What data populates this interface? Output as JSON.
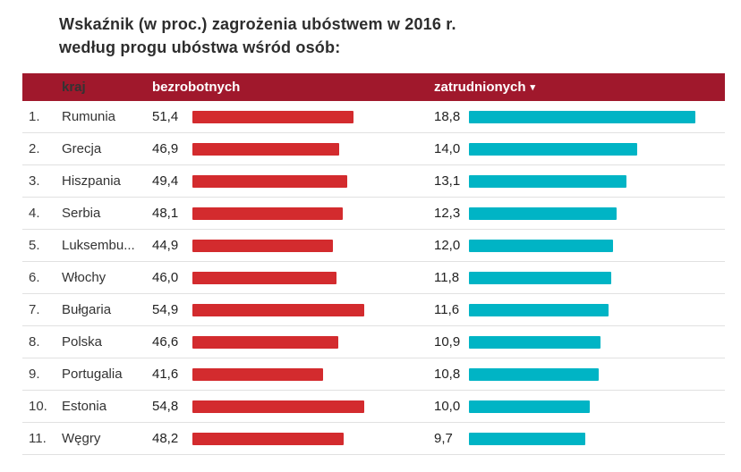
{
  "title": {
    "line1": "Wskaźnik (w proc.) zagrożenia ubóstwem w 2016 r.",
    "line2": "według progu ubóstwa wśród osób:"
  },
  "table": {
    "columns": {
      "country": "kraj",
      "unemployed": "bezrobotnych",
      "employed": "zatrudnionych"
    },
    "sort_icon": "▾",
    "rows": [
      {
        "rank": "1.",
        "country": "Rumunia",
        "unemployed": "51,4",
        "employed": "18,8"
      },
      {
        "rank": "2.",
        "country": "Grecja",
        "unemployed": "46,9",
        "employed": "14,0"
      },
      {
        "rank": "3.",
        "country": "Hiszpania",
        "unemployed": "49,4",
        "employed": "13,1"
      },
      {
        "rank": "4.",
        "country": "Serbia",
        "unemployed": "48,1",
        "employed": "12,3"
      },
      {
        "rank": "5.",
        "country": "Luksembu...",
        "unemployed": "44,9",
        "employed": "12,0"
      },
      {
        "rank": "6.",
        "country": "Włochy",
        "unemployed": "46,0",
        "employed": "11,8"
      },
      {
        "rank": "7.",
        "country": "Bułgaria",
        "unemployed": "54,9",
        "employed": "11,6"
      },
      {
        "rank": "8.",
        "country": "Polska",
        "unemployed": "46,6",
        "employed": "10,9"
      },
      {
        "rank": "9.",
        "country": "Portugalia",
        "unemployed": "41,6",
        "employed": "10,8"
      },
      {
        "rank": "10.",
        "country": "Estonia",
        "unemployed": "54,8",
        "employed": "10,0"
      },
      {
        "rank": "11.",
        "country": "Węgry",
        "unemployed": "48,2",
        "employed": "9,7"
      }
    ]
  },
  "colors": {
    "header_bg": "#a0182c",
    "unemployed_bar": "#d32b2e",
    "employed_bar": "#00b4c5"
  },
  "chart_data": {
    "type": "bar",
    "title": "Wskaźnik (w proc.) zagrożenia ubóstwem w 2016 r. według progu ubóstwa wśród osób:",
    "categories": [
      "Rumunia",
      "Grecja",
      "Hiszpania",
      "Serbia",
      "Luksembu...",
      "Włochy",
      "Bułgaria",
      "Polska",
      "Portugalia",
      "Estonia",
      "Węgry"
    ],
    "series": [
      {
        "name": "bezrobotnych",
        "values": [
          51.4,
          46.9,
          49.4,
          48.1,
          44.9,
          46.0,
          54.9,
          46.6,
          41.6,
          54.8,
          48.2
        ],
        "color": "#d32b2e"
      },
      {
        "name": "zatrudnionych",
        "values": [
          18.8,
          14.0,
          13.1,
          12.3,
          12.0,
          11.8,
          11.6,
          10.9,
          10.8,
          10.0,
          9.7
        ],
        "color": "#00b4c5"
      }
    ],
    "value_format": "percent, comma decimal",
    "sort": "zatrudnionych descending",
    "legend_position": "in-header",
    "grid": false
  }
}
